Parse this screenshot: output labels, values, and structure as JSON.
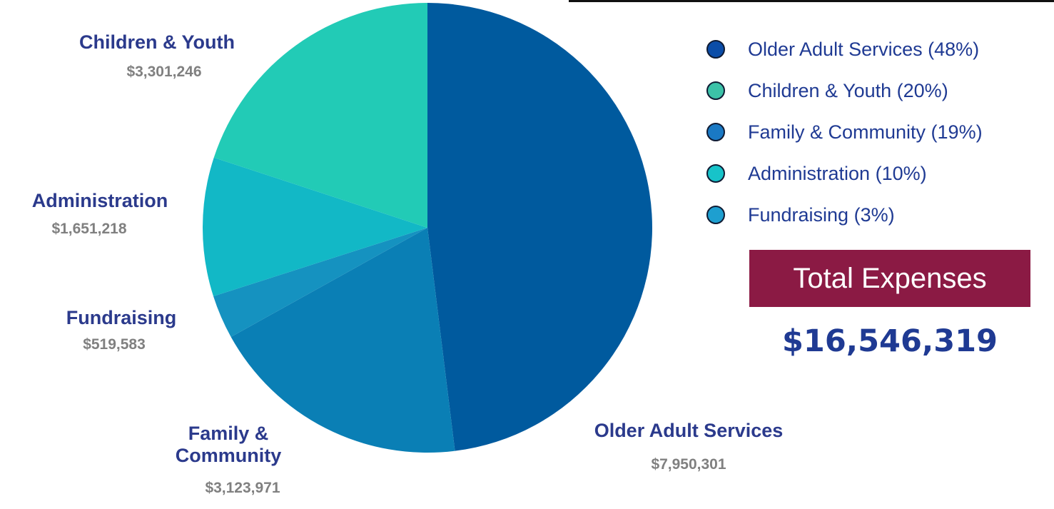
{
  "chart_data": {
    "type": "pie",
    "slices": [
      {
        "name": "Older Adult Services",
        "value": 7950301,
        "amount_label": "$7,950,301",
        "legend": "Older Adult Services (48%)",
        "color": "#005a9e",
        "legend_color": "#0b4da8"
      },
      {
        "name": "Family & Community",
        "value": 3123971,
        "amount_label": "$3,123,971",
        "legend": "Family & Community (19%)",
        "color": "#0a7fb5",
        "legend_color": "#1a79c4"
      },
      {
        "name": "Fundraising",
        "value": 519583,
        "amount_label": "$519,583",
        "legend": "Fundraising (3%)",
        "color": "#1592c0",
        "legend_color": "#1e9fd0"
      },
      {
        "name": "Administration",
        "value": 1651218,
        "amount_label": "$1,651,218",
        "legend": "Administration (10%)",
        "color": "#12b8c6",
        "legend_color": "#17c3c9"
      },
      {
        "name": "Children & Youth",
        "value": 3301246,
        "amount_label": "$3,301,246",
        "legend": "Children & Youth (20%)",
        "color": "#22cbb6",
        "legend_color": "#3cc2a8"
      }
    ],
    "legend_order": [
      0,
      4,
      1,
      3,
      2
    ],
    "legend_position": "right"
  },
  "total": {
    "label": "Total Expenses",
    "value": "$16,546,319",
    "box_color": "#8b1a44",
    "text_color": "#1f3a93"
  }
}
